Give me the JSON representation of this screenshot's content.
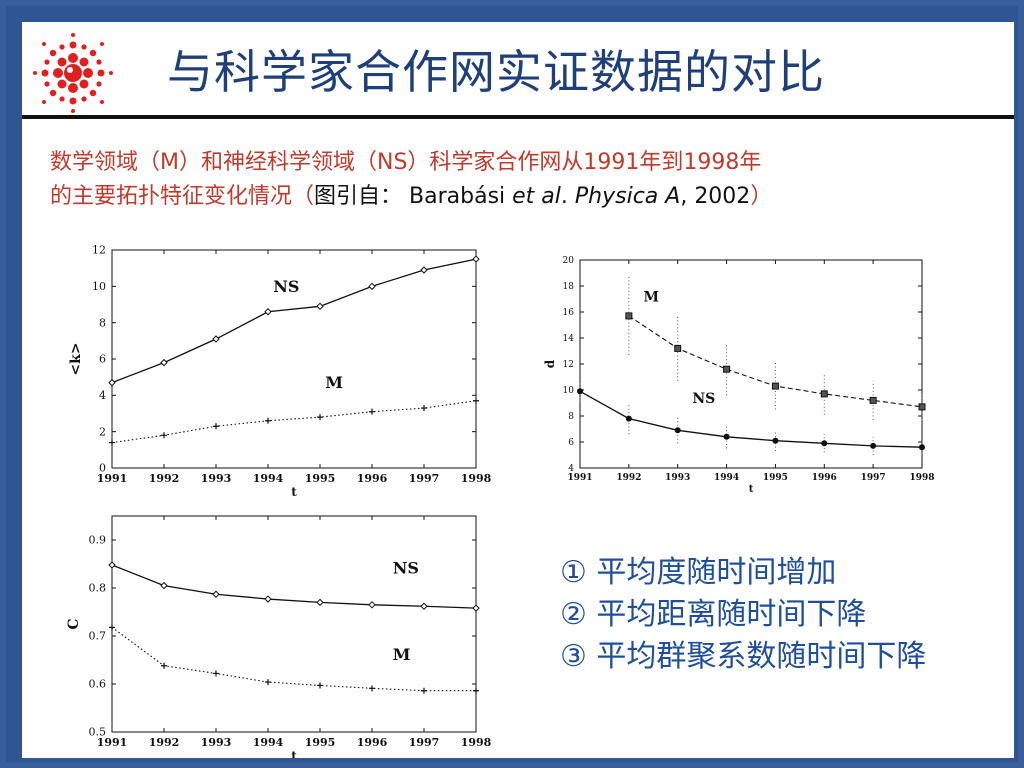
{
  "header": {
    "title": "与科学家合作网实证数据的对比"
  },
  "caption": {
    "line1": "数学领域（M）和神经科学领域（NS）科学家合作网从1991年到1998年",
    "line2_prefix": "的主要拓扑特征变化情况（",
    "citation_label": "图引自：",
    "citation_authors": " Barabási ",
    "citation_etal": "et al",
    "citation_dot": ". ",
    "citation_journal": "Physica A",
    "citation_year": ", 2002",
    "line2_suffix": "）"
  },
  "findings": [
    "① 平均度随时间增加",
    "② 平均距离随时间下降",
    "③ 平均群聚系数随时间下降"
  ],
  "colors": {
    "title": "#1f3f7a",
    "caption": "#c0392b",
    "findings": "#1f4f9a",
    "frame": "#2f5592",
    "logo": "#e02020"
  },
  "chart_data": [
    {
      "id": "avg-degree",
      "type": "line",
      "ylabel": "<k>",
      "xlabel": "t",
      "x": [
        1991,
        1992,
        1993,
        1994,
        1995,
        1996,
        1997,
        1998
      ],
      "xlim": [
        1991,
        1998
      ],
      "ylim": [
        0,
        12
      ],
      "yticks": [
        0,
        2,
        4,
        6,
        8,
        10,
        12
      ],
      "series": [
        {
          "name": "NS",
          "values": [
            4.7,
            5.8,
            7.1,
            8.6,
            8.9,
            10.0,
            10.9,
            11.5
          ],
          "style": "solid",
          "marker": "diamond",
          "label_at": [
            1994.1,
            9.7
          ]
        },
        {
          "name": "M",
          "values": [
            1.4,
            1.8,
            2.3,
            2.6,
            2.8,
            3.1,
            3.3,
            3.7
          ],
          "style": "dotted",
          "marker": "plus",
          "label_at": [
            1995.1,
            4.4
          ]
        }
      ]
    },
    {
      "id": "avg-distance",
      "type": "line",
      "ylabel": "d",
      "xlabel": "t",
      "x": [
        1991,
        1992,
        1993,
        1994,
        1995,
        1996,
        1997,
        1998
      ],
      "xlim": [
        1991,
        1998
      ],
      "ylim": [
        4,
        20
      ],
      "yticks": [
        4,
        6,
        8,
        10,
        12,
        14,
        16,
        18,
        20
      ],
      "series": [
        {
          "name": "M",
          "x": [
            1992,
            1993,
            1994,
            1995,
            1996,
            1997,
            1998
          ],
          "values": [
            15.7,
            13.2,
            11.6,
            10.3,
            9.7,
            9.2,
            8.7
          ],
          "errors": [
            3.0,
            2.5,
            2.0,
            1.8,
            1.6,
            1.5,
            1.0
          ],
          "style": "dashed",
          "marker": "square",
          "label_at": [
            1992.3,
            16.8
          ]
        },
        {
          "name": "NS",
          "x": [
            1991,
            1992,
            1993,
            1994,
            1995,
            1996,
            1997,
            1998
          ],
          "values": [
            9.9,
            7.8,
            6.9,
            6.4,
            6.1,
            5.9,
            5.7,
            5.6
          ],
          "errors": [
            0.8,
            1.2,
            1.0,
            0.9,
            0.8,
            0.7,
            0.7,
            0.5
          ],
          "style": "solid",
          "marker": "dot",
          "label_at": [
            1993.3,
            9.0
          ]
        }
      ]
    },
    {
      "id": "clustering",
      "type": "line",
      "ylabel": "C",
      "xlabel": "t",
      "x": [
        1991,
        1992,
        1993,
        1994,
        1995,
        1996,
        1997,
        1998
      ],
      "xlim": [
        1991,
        1998
      ],
      "ylim": [
        0.5,
        0.95
      ],
      "yticks": [
        0.5,
        0.6,
        0.7,
        0.8,
        0.9
      ],
      "series": [
        {
          "name": "NS",
          "values": [
            0.848,
            0.805,
            0.787,
            0.777,
            0.77,
            0.765,
            0.762,
            0.758
          ],
          "style": "solid",
          "marker": "diamond",
          "label_at": [
            1996.4,
            0.83
          ]
        },
        {
          "name": "M",
          "values": [
            0.718,
            0.638,
            0.622,
            0.604,
            0.597,
            0.591,
            0.586,
            0.586
          ],
          "style": "dotted",
          "marker": "plus",
          "label_at": [
            1996.4,
            0.65
          ]
        }
      ]
    }
  ]
}
